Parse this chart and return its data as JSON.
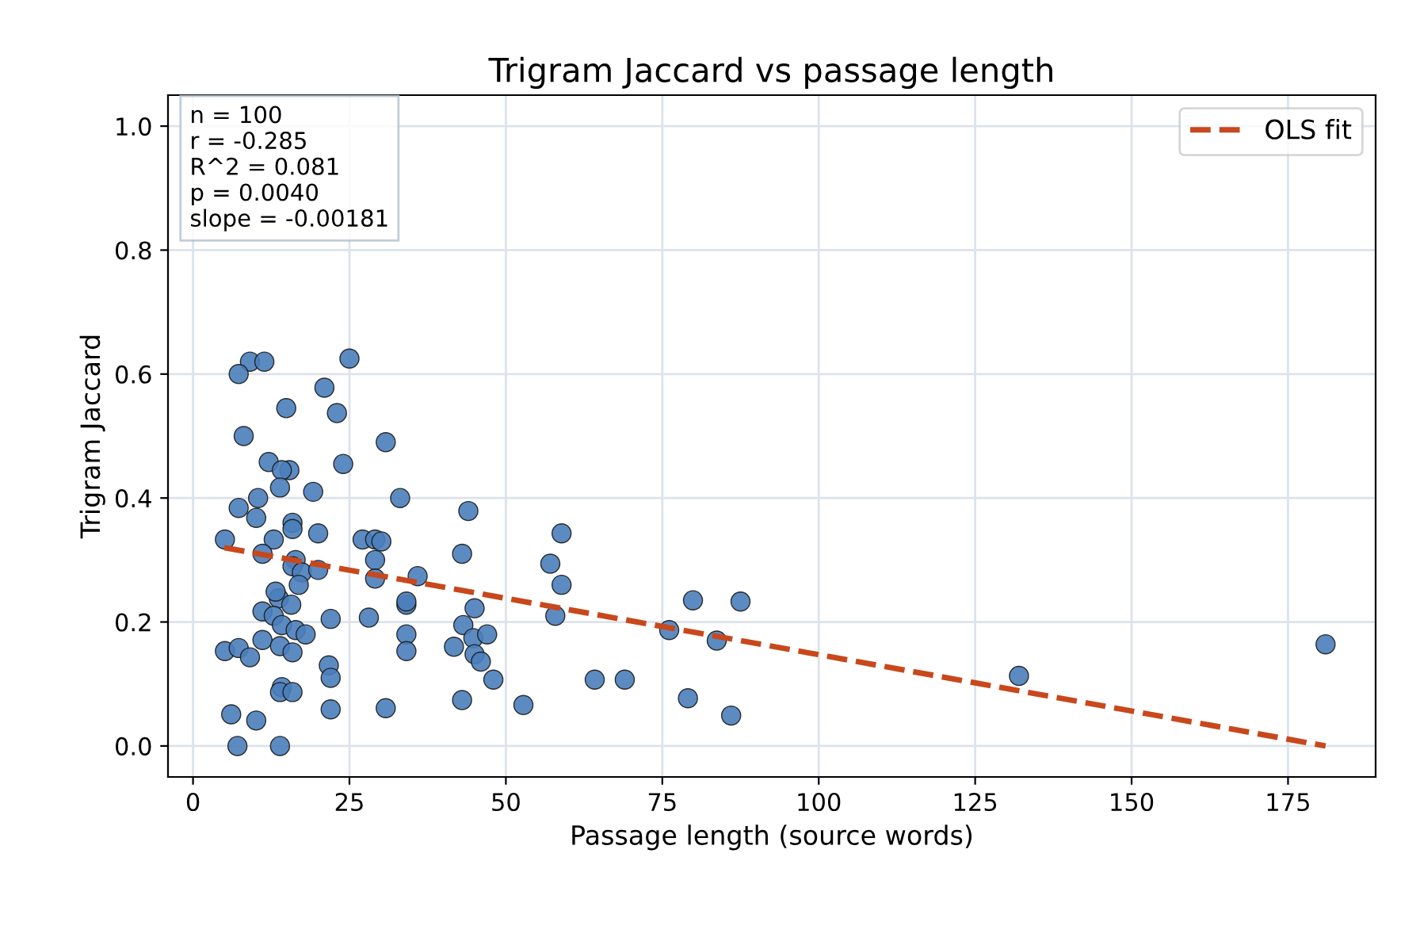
{
  "chart_data": {
    "type": "scatter",
    "title": "Trigram Jaccard vs passage length",
    "xlabel": "Passage length (source words)",
    "ylabel": "Trigram Jaccard",
    "xlim": [
      -4,
      189
    ],
    "ylim": [
      -0.05,
      1.05
    ],
    "xticks": [
      0,
      25,
      50,
      75,
      100,
      125,
      150,
      175
    ],
    "yticks": [
      {
        "value": 0,
        "label": "0.0"
      },
      0.2,
      0.4,
      0.6,
      0.8,
      {
        "value": 1,
        "label": "1.0"
      }
    ],
    "grid": true,
    "legend": "top right",
    "annotations": [
      "n = 100\nr = -0.285\nR^2 = 0.081\np = 0.0040\nslope = -0.00181"
    ],
    "series": [
      {
        "marker": "circle",
        "color": "#4a7ebb",
        "x": [
          9.1,
          11.4,
          7.3,
          25.0,
          21.0,
          14.9,
          23.0,
          8.1,
          30.8,
          24.0,
          12.1,
          15.4,
          14.2,
          19.2,
          33.1,
          13.9,
          10.4,
          7.3,
          10.1,
          44.0,
          15.9,
          15.9,
          20.0,
          12.9,
          27.1,
          29.1,
          30.1,
          5.1,
          58.9,
          11.1,
          16.4,
          15.9,
          29.1,
          43.0,
          57.1,
          17.4,
          20.0,
          35.9,
          29.1,
          16.9,
          58.9,
          13.7,
          15.7,
          11.1,
          12.9,
          22.0,
          28.1,
          34.1,
          34.1,
          45.0,
          57.9,
          79.9,
          87.5,
          14.2,
          16.4,
          43.2,
          44.8,
          47.0,
          34.1,
          76.1,
          83.7,
          5.1,
          7.3,
          9.1,
          11.1,
          13.9,
          15.9,
          18.0,
          21.7,
          45.0,
          46.0,
          48.0,
          52.8,
          64.2,
          69.0,
          79.1,
          86.0,
          132.0,
          181.0,
          41.7,
          43.0,
          30.8,
          22.0,
          22.0,
          14.2,
          13.9,
          15.9,
          6.1,
          10.1,
          7.1,
          13.9,
          13.2,
          34.1
        ],
        "values": [
          0.62,
          0.62,
          0.6,
          0.625,
          0.578,
          0.545,
          0.537,
          0.5,
          0.49,
          0.455,
          0.458,
          0.445,
          0.445,
          0.41,
          0.4,
          0.417,
          0.4,
          0.384,
          0.368,
          0.379,
          0.36,
          0.35,
          0.343,
          0.333,
          0.333,
          0.333,
          0.33,
          0.333,
          0.343,
          0.31,
          0.3,
          0.29,
          0.3,
          0.31,
          0.294,
          0.28,
          0.284,
          0.274,
          0.27,
          0.26,
          0.26,
          0.238,
          0.228,
          0.217,
          0.21,
          0.205,
          0.207,
          0.228,
          0.233,
          0.222,
          0.21,
          0.235,
          0.233,
          0.195,
          0.187,
          0.195,
          0.174,
          0.18,
          0.18,
          0.187,
          0.17,
          0.153,
          0.158,
          0.143,
          0.171,
          0.161,
          0.151,
          0.18,
          0.13,
          0.148,
          0.136,
          0.107,
          0.066,
          0.107,
          0.107,
          0.077,
          0.049,
          0.113,
          0.164,
          0.16,
          0.074,
          0.061,
          0.059,
          0.11,
          0.095,
          0.087,
          0.087,
          0.051,
          0.041,
          0.0,
          0.0,
          0.249,
          0.153
        ]
      },
      {
        "type": "line",
        "name": "OLS fit",
        "color": "#c8481c",
        "line_style": "dashed",
        "x": [
          5,
          181
        ],
        "values": [
          0.32,
          0.0
        ]
      }
    ]
  }
}
